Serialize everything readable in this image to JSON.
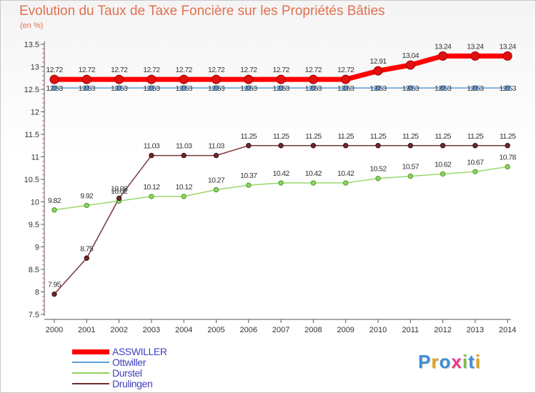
{
  "title": "Evolution du Taux de Taxe Foncière sur les Propriétés Bâties",
  "unit_label": "(en %)",
  "logo_text": "Proxiti",
  "colors": {
    "title": "#e07050",
    "ASSWILLER": "#ff0000",
    "Ottwiller": "#5b9bd5",
    "Durstel": "#8ed361",
    "Drulingen": "#6e2a2a",
    "legend_text": "#4040c0"
  },
  "chart_data": {
    "type": "line",
    "title": "Evolution du Taux de Taxe Foncière sur les Propriétés Bâties",
    "ylabel": "(en %)",
    "xlabel": "",
    "x": [
      "2000",
      "2001",
      "2002",
      "2003",
      "2004",
      "2005",
      "2006",
      "2007",
      "2008",
      "2009",
      "2010",
      "2011",
      "2012",
      "2013",
      "2014"
    ],
    "ylim": [
      7.5,
      13.5
    ],
    "yticks": [
      "7.5",
      "8",
      "8.5",
      "9",
      "9.5",
      "10",
      "10.5",
      "11",
      "11.5",
      "12",
      "12.5",
      "13",
      "13.5"
    ],
    "grid": false,
    "legend_position": "bottom-left",
    "series": [
      {
        "name": "ASSWILLER",
        "values": [
          12.72,
          12.72,
          12.72,
          12.72,
          12.72,
          12.72,
          12.72,
          12.72,
          12.72,
          12.72,
          12.91,
          13.04,
          13.24,
          13.24,
          13.24
        ],
        "labels": [
          "12.72",
          "12.72",
          "12.72",
          "12.72",
          "12.72",
          "12.72",
          "12.72",
          "12.72",
          "12.72",
          "12.72",
          "12.91",
          "13.04",
          "13.24",
          "13.24",
          "13.24"
        ]
      },
      {
        "name": "Ottwiller",
        "values": [
          12.53,
          12.53,
          12.53,
          12.53,
          12.53,
          12.53,
          12.53,
          12.53,
          12.53,
          12.53,
          12.53,
          12.53,
          12.53,
          12.53,
          12.53
        ],
        "labels": [
          "12.53",
          "12.53",
          "12.53",
          "12.53",
          "12.53",
          "12.53",
          "12.53",
          "12.53",
          "12.53",
          "12.53",
          "12.53",
          "12.53",
          "12.53",
          "12.53",
          "12.53"
        ]
      },
      {
        "name": "Durstel",
        "values": [
          9.82,
          9.92,
          10.02,
          10.12,
          10.12,
          10.27,
          10.37,
          10.42,
          10.42,
          10.42,
          10.52,
          10.57,
          10.62,
          10.67,
          10.78
        ],
        "labels": [
          "9.82",
          "9.92",
          "10.02",
          "10.12",
          "10.12",
          "10.27",
          "10.37",
          "10.42",
          "10.42",
          "10.42",
          "10.52",
          "10.57",
          "10.62",
          "10.67",
          "10.78"
        ]
      },
      {
        "name": "Drulingen",
        "values": [
          7.95,
          8.75,
          10.08,
          11.03,
          11.03,
          11.03,
          11.25,
          11.25,
          11.25,
          11.25,
          11.25,
          11.25,
          11.25,
          11.25,
          11.25
        ],
        "labels": [
          "7.95",
          "8.75",
          "10.08",
          "11.03",
          "11.03",
          "11.03",
          "11.25",
          "11.25",
          "11.25",
          "11.25",
          "11.25",
          "11.25",
          "11.25",
          "11.25",
          "11.25"
        ]
      }
    ]
  }
}
